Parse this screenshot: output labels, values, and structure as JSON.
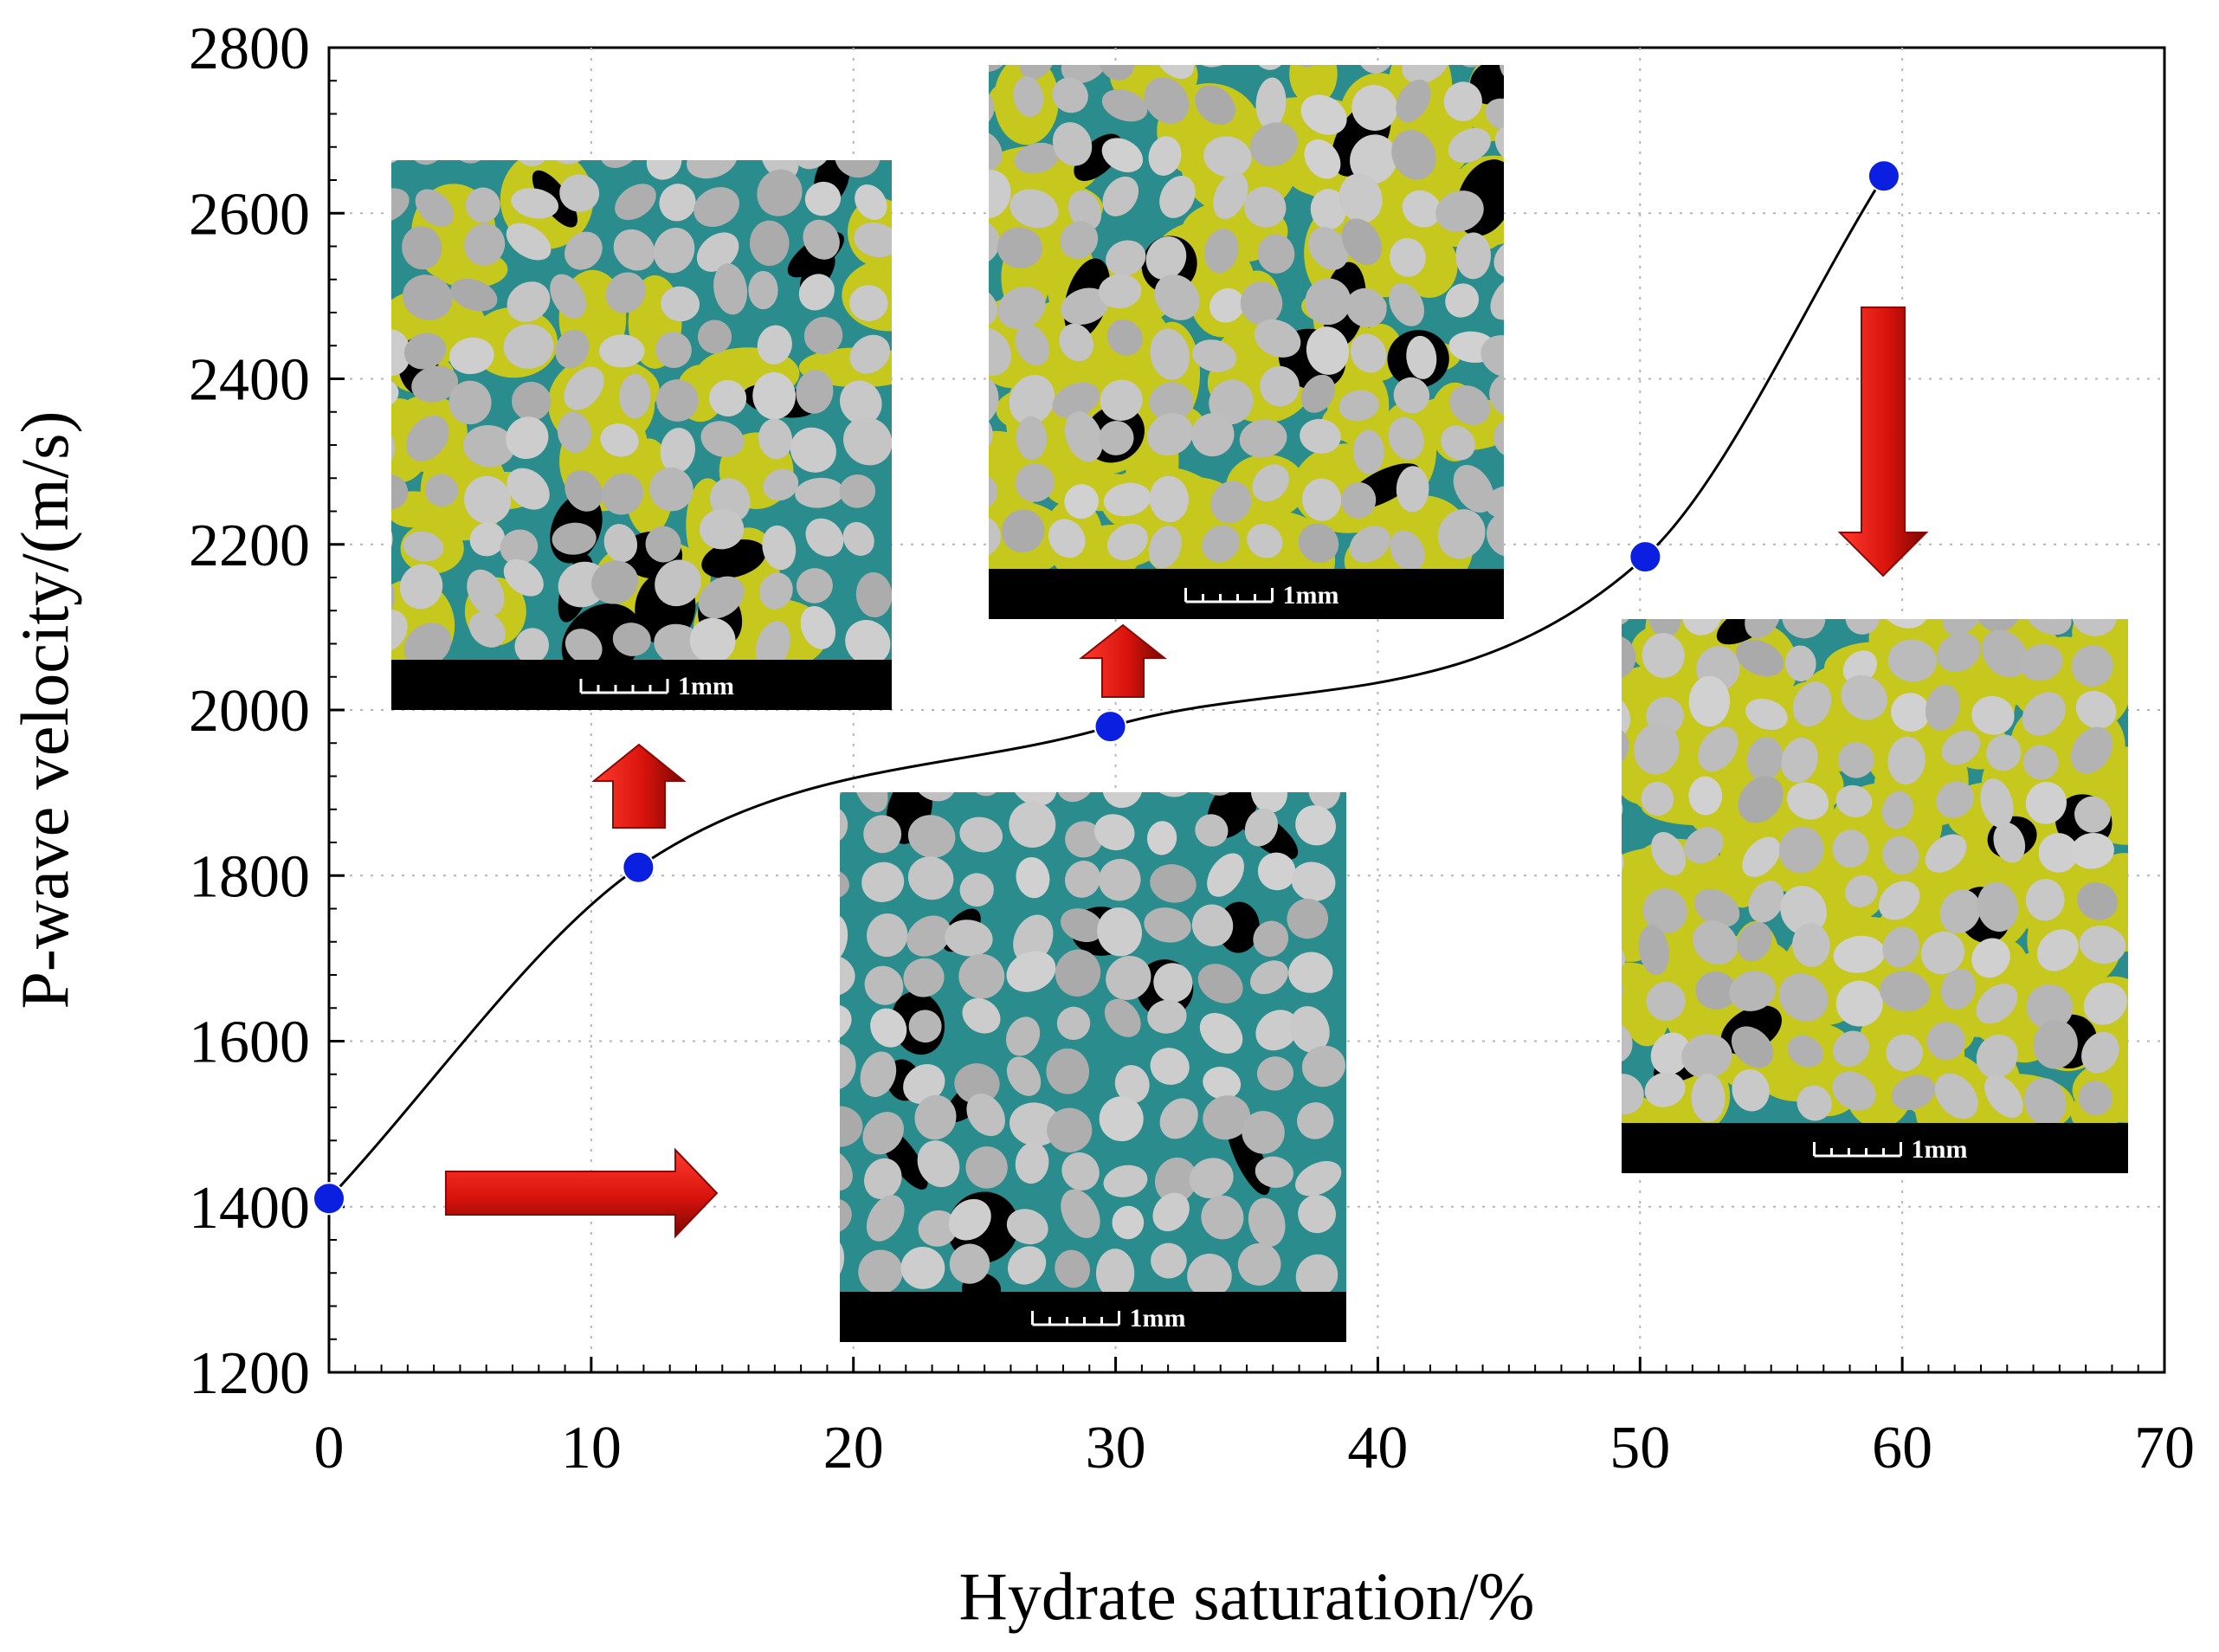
{
  "chart_data": {
    "type": "line",
    "xlabel": "Hydrate saturation/%",
    "ylabel": "P-wave velocity/(m/s)",
    "xlim": [
      0,
      70
    ],
    "ylim": [
      1200,
      2800
    ],
    "xticks": [
      0,
      10,
      20,
      30,
      40,
      50,
      60,
      70
    ],
    "yticks": [
      1200,
      1400,
      1600,
      1800,
      2000,
      2200,
      2400,
      2600,
      2800
    ],
    "grid": true,
    "points": [
      {
        "x": 0,
        "y": 1410
      },
      {
        "x": 11.8,
        "y": 1810
      },
      {
        "x": 29.8,
        "y": 1980
      },
      {
        "x": 50.2,
        "y": 2185
      },
      {
        "x": 59.3,
        "y": 2645
      }
    ],
    "marker_color": "#0a1fe0",
    "line_color": "#000000"
  },
  "insets": [
    {
      "name": "inset-sh0",
      "scale_label": "1mm"
    },
    {
      "name": "inset-sh12",
      "scale_label": "1mm"
    },
    {
      "name": "inset-sh30",
      "scale_label": "1mm"
    },
    {
      "name": "inset-sh59",
      "scale_label": "1mm"
    }
  ],
  "colors": {
    "grain": "#b9b9b9",
    "pore_water": "#2a8c8c",
    "gas": "#000000",
    "hydrate": "#c6c81e",
    "arrow": "#e3120b"
  }
}
